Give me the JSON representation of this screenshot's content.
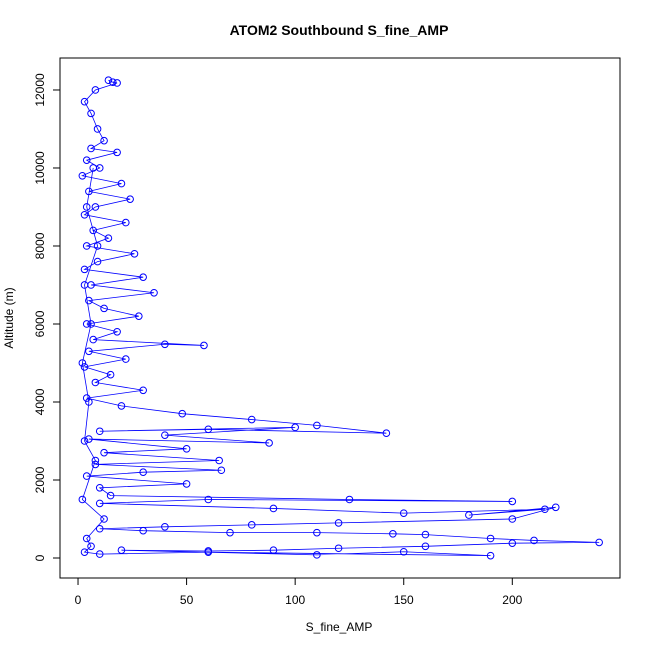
{
  "chart_data": {
    "type": "line",
    "markers": true,
    "title": "ATOM2 Southbound S_fine_AMP",
    "x_label": "S_fine_AMP",
    "y_label": "Altitude (m)",
    "color": "#0000ff",
    "xlim": [
      -8.3,
      249.6
    ],
    "ylim": [
      -513,
      12820
    ],
    "xticks": [
      0,
      50,
      100,
      150,
      200
    ],
    "yticks": [
      0,
      2000,
      4000,
      6000,
      8000,
      10000,
      12000
    ],
    "x": [
      14,
      16,
      18,
      8,
      3,
      6,
      9,
      12,
      6,
      18,
      4,
      10,
      2,
      20,
      5,
      24,
      8,
      3,
      22,
      7,
      14,
      4,
      26,
      9,
      3,
      30,
      6,
      35,
      5,
      12,
      28,
      4,
      18,
      7,
      58,
      40,
      5,
      22,
      3,
      15,
      8,
      30,
      4,
      20,
      48,
      80,
      110,
      142,
      60,
      10,
      100,
      40,
      88,
      5,
      50,
      12,
      65,
      8,
      66,
      30,
      4,
      50,
      10,
      15,
      125,
      200,
      60,
      10,
      90,
      150,
      215,
      180,
      220,
      200,
      120,
      80,
      40,
      10,
      30,
      70,
      110,
      145,
      160,
      190,
      210,
      240,
      200,
      160,
      120,
      90,
      60,
      20,
      110,
      150,
      190,
      60,
      10,
      3,
      6,
      4,
      12,
      2,
      8,
      3,
      5,
      2,
      6,
      3,
      9,
      4,
      7
    ],
    "values": [
      12250,
      12200,
      12180,
      12000,
      11700,
      11400,
      11000,
      10700,
      10500,
      10400,
      10200,
      10000,
      9800,
      9600,
      9400,
      9200,
      9000,
      8800,
      8600,
      8400,
      8200,
      8000,
      7800,
      7600,
      7400,
      7200,
      7000,
      6800,
      6600,
      6400,
      6200,
      6000,
      5800,
      5600,
      5450,
      5480,
      5300,
      5100,
      4900,
      4700,
      4500,
      4300,
      4100,
      3900,
      3700,
      3550,
      3400,
      3200,
      3300,
      3250,
      3350,
      3150,
      2950,
      3050,
      2800,
      2700,
      2500,
      2400,
      2250,
      2200,
      2100,
      1900,
      1800,
      1600,
      1500,
      1450,
      1500,
      1400,
      1270,
      1150,
      1250,
      1100,
      1300,
      1000,
      900,
      850,
      800,
      750,
      700,
      650,
      650,
      620,
      600,
      500,
      450,
      400,
      380,
      300,
      250,
      200,
      180,
      200,
      80,
      160,
      60,
      150,
      100,
      150,
      300,
      500,
      1000,
      1500,
      2500,
      3000,
      4000,
      5000,
      6000,
      7000,
      8000,
      9000,
      10000
    ]
  }
}
